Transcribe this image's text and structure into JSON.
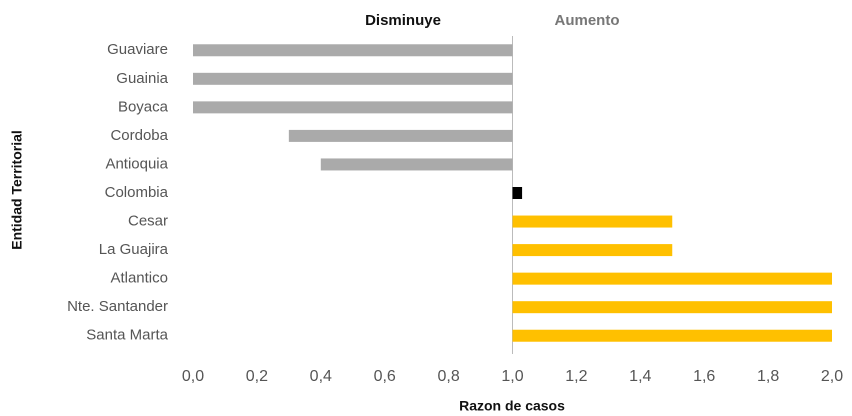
{
  "chart_data": {
    "type": "diverging-bar",
    "annotations": [
      {
        "text": "Disminuye",
        "color": "#111111"
      },
      {
        "text": "Aumento",
        "color": "#777777"
      }
    ],
    "xlabel": "Razon de casos",
    "ylabel": "Entidad Territorial",
    "categories": [
      "Guaviare",
      "Guainia",
      "Boyaca",
      "Cordoba",
      "Antioquia",
      "Colombia",
      "Cesar",
      "La Guajira",
      "Atlantico",
      "Nte. Santander",
      "Santa Marta"
    ],
    "values": [
      0,
      0,
      0,
      0.3,
      0.4,
      1.03,
      1.5,
      1.5,
      2.0,
      2.0,
      2.0
    ],
    "colors": [
      "#aaaaaa",
      "#aaaaaa",
      "#aaaaaa",
      "#aaaaaa",
      "#aaaaaa",
      "#000000",
      "#ffc000",
      "#ffc000",
      "#ffc000",
      "#ffc000",
      "#ffc000"
    ],
    "baseline": 1,
    "xlim": [
      0,
      2
    ],
    "xticks": [
      {
        "value": 0,
        "label": "0,0"
      },
      {
        "value": 0.2,
        "label": "0,2"
      },
      {
        "value": 0.4,
        "label": "0,4"
      },
      {
        "value": 0.6,
        "label": "0,6"
      },
      {
        "value": 0.8,
        "label": "0,8"
      },
      {
        "value": 1.0,
        "label": "1,0"
      },
      {
        "value": 1.2,
        "label": "1,2"
      },
      {
        "value": 1.4,
        "label": "1,4"
      },
      {
        "value": 1.6,
        "label": "1,6"
      },
      {
        "value": 1.8,
        "label": "1,8"
      },
      {
        "value": 2.0,
        "label": "2,0"
      }
    ],
    "grid": false
  }
}
